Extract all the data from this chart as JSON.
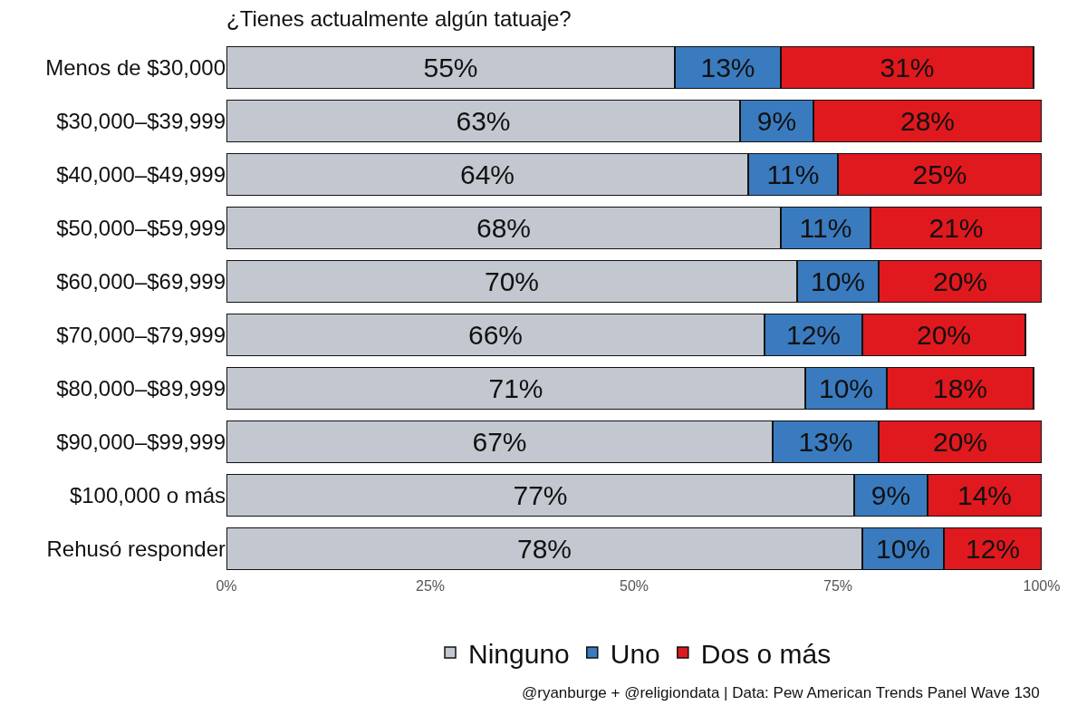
{
  "chart_data": {
    "type": "bar",
    "orientation": "horizontal",
    "stacked": true,
    "title": "¿Tienes actualmente algún tatuaje?",
    "categories": [
      "Menos de $30,000",
      "$30,000–$39,999",
      "$40,000–$49,999",
      "$50,000–$59,999",
      "$60,000–$69,999",
      "$70,000–$79,999",
      "$80,000–$89,999",
      "$90,000–$99,999",
      "$100,000 o más",
      "Rehusó responder"
    ],
    "series": [
      {
        "name": "Ninguno",
        "color": "#c3c8d0",
        "values": [
          55,
          63,
          64,
          68,
          70,
          66,
          71,
          67,
          77,
          78
        ],
        "value_labels": [
          "55%",
          "63%",
          "64%",
          "68%",
          "70%",
          "66%",
          "71%",
          "67%",
          "77%",
          "78%"
        ]
      },
      {
        "name": "Uno",
        "color": "#3a7bbf",
        "values": [
          13,
          9,
          11,
          11,
          10,
          12,
          10,
          13,
          9,
          10
        ],
        "value_labels": [
          "13%",
          "9%",
          "11%",
          "11%",
          "10%",
          "12%",
          "10%",
          "13%",
          "9%",
          "10%"
        ]
      },
      {
        "name": "Dos o más",
        "color": "#e0191e",
        "values": [
          31,
          28,
          25,
          21,
          20,
          20,
          18,
          20,
          14,
          12
        ],
        "value_labels": [
          "31%",
          "28%",
          "25%",
          "21%",
          "20%",
          "20%",
          "18%",
          "20%",
          "14%",
          "12%"
        ]
      }
    ],
    "xlim": [
      0,
      100
    ],
    "xticks": [
      {
        "value": 0,
        "label": "0%"
      },
      {
        "value": 25,
        "label": "25%"
      },
      {
        "value": 50,
        "label": "50%"
      },
      {
        "value": 75,
        "label": "75%"
      },
      {
        "value": 100,
        "label": "100%"
      }
    ],
    "legend": "bottom",
    "annotations": [
      "@ryanburge + @religiondata | Data: Pew American Trends Panel Wave 130"
    ]
  }
}
